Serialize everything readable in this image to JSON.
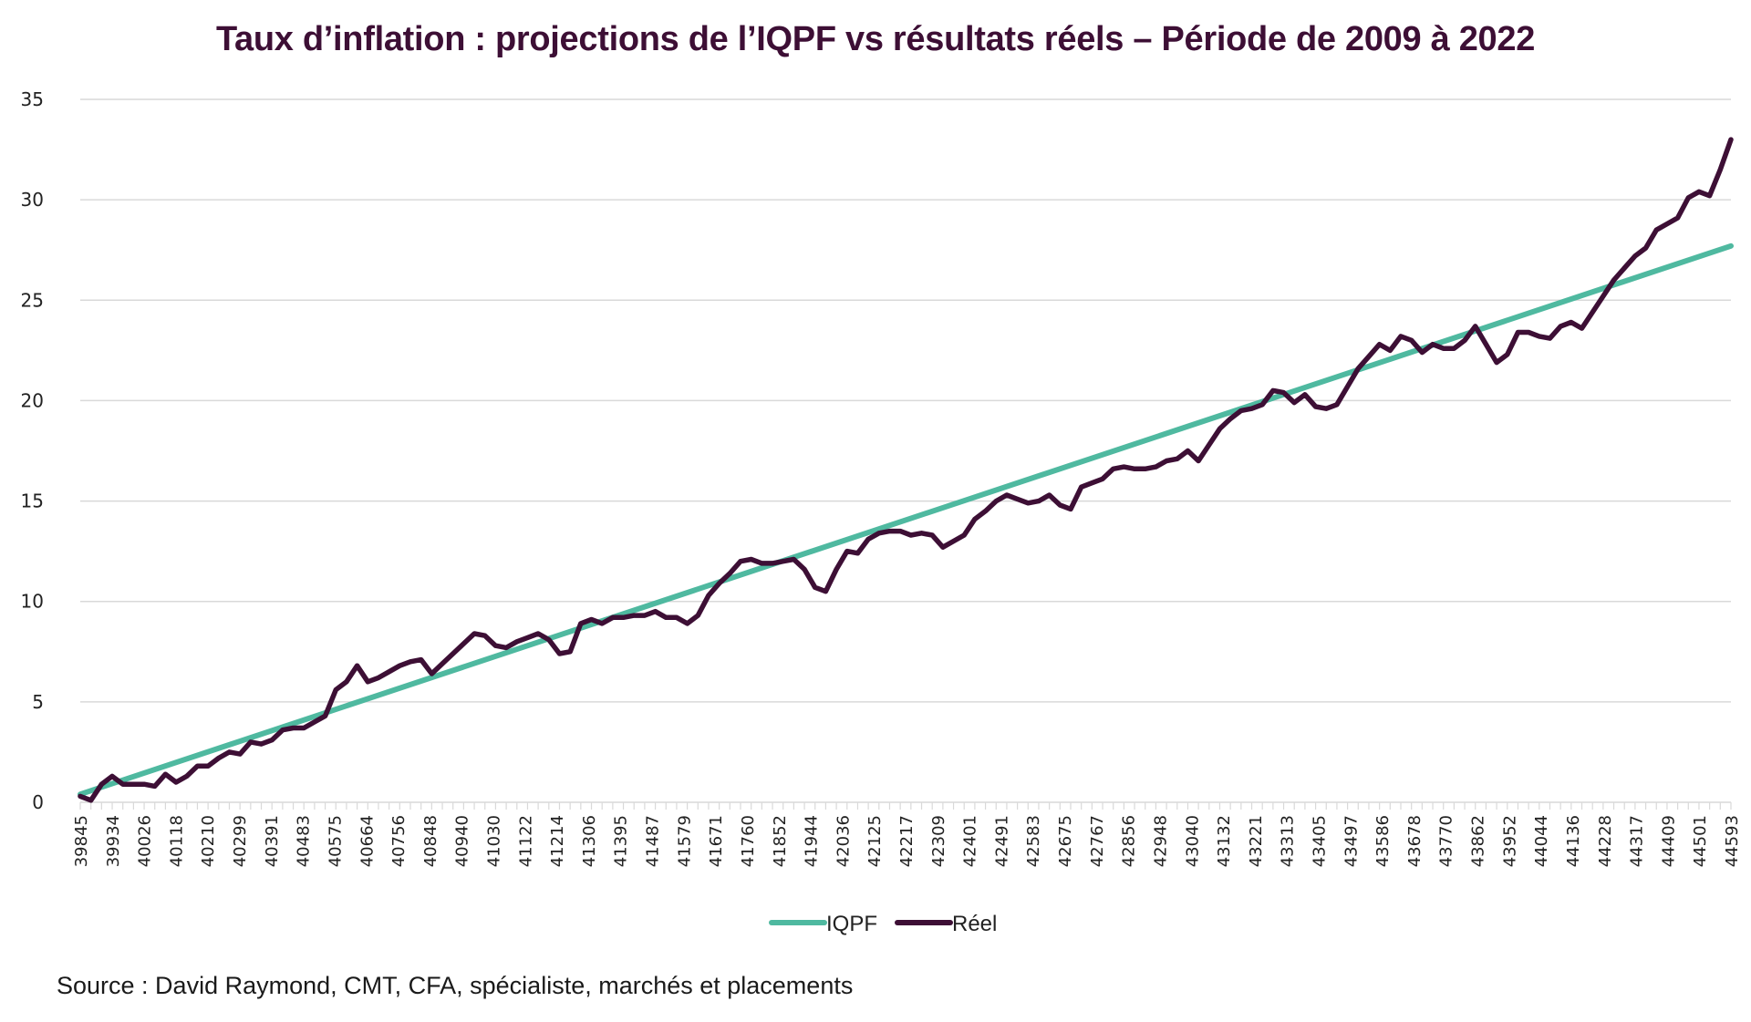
{
  "chart_data": {
    "type": "line",
    "title": "Taux d’inflation : projections de l’IQPF vs résultats réels – Période de 2009 à 2022",
    "xlabel": "",
    "ylabel": "",
    "ylim": [
      0,
      35
    ],
    "yticks": [
      0,
      5,
      10,
      15,
      20,
      25,
      30,
      35
    ],
    "grid": true,
    "legend_position": "bottom",
    "x_tick_labels": [
      "39845",
      "39934",
      "40026",
      "40118",
      "40210",
      "40299",
      "40391",
      "40483",
      "40575",
      "40664",
      "40756",
      "40848",
      "40940",
      "41030",
      "41122",
      "41214",
      "41306",
      "41395",
      "41487",
      "41579",
      "41671",
      "41760",
      "41852",
      "41944",
      "42036",
      "42125",
      "42217",
      "42309",
      "42401",
      "42491",
      "42583",
      "42675",
      "42767",
      "42856",
      "42948",
      "43040",
      "43132",
      "43221",
      "43313",
      "43405",
      "43497",
      "43586",
      "43678",
      "43770",
      "43862",
      "43952",
      "44044",
      "44136",
      "44228",
      "44317",
      "44409",
      "44501",
      "44593"
    ],
    "series": [
      {
        "name": "IQPF",
        "color": "#4fb9a0",
        "start": 0.4,
        "end": 27.7
      },
      {
        "name": "Réel",
        "color": "#3d0f35",
        "values": [
          0.3,
          0.1,
          0.9,
          1.3,
          0.9,
          0.9,
          0.9,
          0.8,
          1.4,
          1.0,
          1.3,
          1.8,
          1.8,
          2.2,
          2.5,
          2.4,
          3.0,
          2.9,
          3.1,
          3.6,
          3.7,
          3.7,
          4.0,
          4.3,
          5.6,
          6.0,
          6.8,
          6.0,
          6.2,
          6.5,
          6.8,
          7.0,
          7.1,
          6.4,
          6.9,
          7.4,
          7.9,
          8.4,
          8.3,
          7.8,
          7.7,
          8.0,
          8.2,
          8.4,
          8.1,
          7.4,
          7.5,
          8.9,
          9.1,
          8.9,
          9.2,
          9.2,
          9.3,
          9.3,
          9.5,
          9.2,
          9.2,
          8.9,
          9.3,
          10.3,
          10.9,
          11.4,
          12.0,
          12.1,
          11.9,
          11.9,
          12.0,
          12.1,
          11.6,
          10.7,
          10.5,
          11.6,
          12.5,
          12.4,
          13.1,
          13.4,
          13.5,
          13.5,
          13.3,
          13.4,
          13.3,
          12.7,
          13.0,
          13.3,
          14.1,
          14.5,
          15.0,
          15.3,
          15.1,
          14.9,
          15.0,
          15.3,
          14.8,
          14.6,
          15.7,
          15.9,
          16.1,
          16.6,
          16.7,
          16.6,
          16.6,
          16.7,
          17.0,
          17.1,
          17.5,
          17.0,
          17.8,
          18.6,
          19.1,
          19.5,
          19.6,
          19.8,
          20.5,
          20.4,
          19.9,
          20.3,
          19.7,
          19.6,
          19.8,
          20.7,
          21.6,
          22.2,
          22.8,
          22.5,
          23.2,
          23.0,
          22.4,
          22.8,
          22.6,
          22.6,
          23.0,
          23.7,
          22.8,
          21.9,
          22.3,
          23.4,
          23.4,
          23.2,
          23.1,
          23.7,
          23.9,
          23.6,
          24.4,
          25.2,
          26.0,
          26.6,
          27.2,
          27.6,
          28.5,
          28.8,
          29.1,
          30.1,
          30.4,
          30.2,
          31.5,
          33.0
        ]
      }
    ]
  },
  "legend": {
    "items": [
      {
        "label": "IQPF",
        "color": "#4fb9a0"
      },
      {
        "label": "Réel",
        "color": "#3d0f35"
      }
    ]
  },
  "footer": {
    "source": "Source : David Raymond, CMT, CFA, spécialiste, marchés et placements"
  }
}
